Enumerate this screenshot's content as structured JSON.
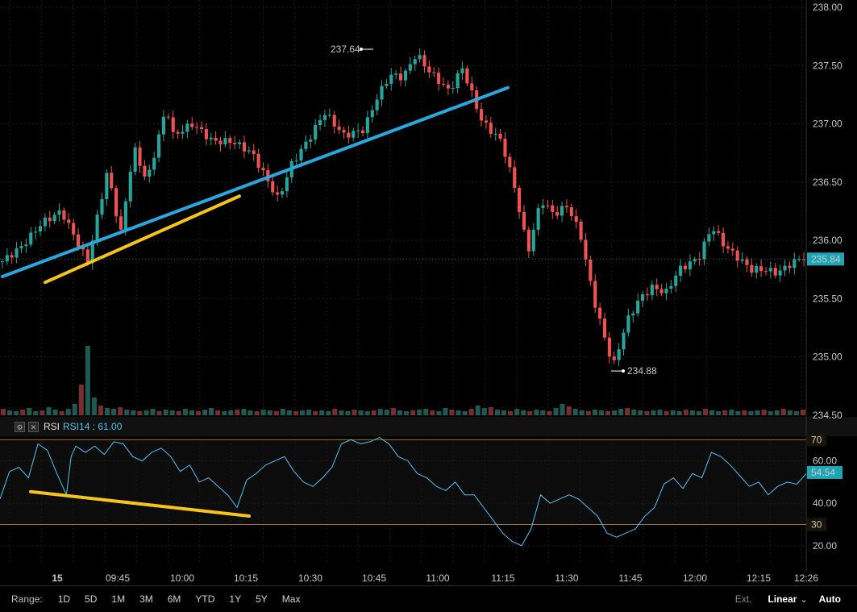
{
  "chart_data": [
    {
      "type": "candlestick",
      "ylim": [
        234.5,
        238.0
      ],
      "y_ticks": [
        "238.00",
        "237.50",
        "237.00",
        "236.50",
        "236.00",
        "235.50",
        "235.00",
        "234.50"
      ],
      "last_price_label": "235.84",
      "last_price": 235.84,
      "high_marker": {
        "label": "237.64",
        "value": 237.64
      },
      "low_marker": {
        "label": "234.88",
        "value": 234.88
      },
      "up_color": "#26a69a",
      "down_color": "#ef5350",
      "price_path": [
        [
          0,
          235.82
        ],
        [
          3,
          235.95
        ],
        [
          6,
          236.15
        ],
        [
          9,
          236.25
        ],
        [
          12,
          235.92
        ],
        [
          13,
          235.82
        ],
        [
          16,
          236.6
        ],
        [
          18,
          236.05
        ],
        [
          20,
          236.8
        ],
        [
          22,
          236.5
        ],
        [
          25,
          237.15
        ],
        [
          26,
          236.9
        ],
        [
          29,
          237.0
        ],
        [
          32,
          236.85
        ],
        [
          35,
          236.85
        ],
        [
          38,
          236.75
        ],
        [
          40,
          236.55
        ],
        [
          42,
          236.35
        ],
        [
          44,
          236.65
        ],
        [
          47,
          236.9
        ],
        [
          49,
          237.1
        ],
        [
          52,
          236.9
        ],
        [
          55,
          236.95
        ],
        [
          57,
          237.22
        ],
        [
          59,
          237.42
        ],
        [
          61,
          237.4
        ],
        [
          63,
          237.6
        ],
        [
          65,
          237.45
        ],
        [
          68,
          237.28
        ],
        [
          70,
          237.48
        ],
        [
          71,
          237.33
        ],
        [
          73,
          237.02
        ],
        [
          76,
          236.85
        ],
        [
          78,
          236.45
        ],
        [
          80,
          235.9
        ],
        [
          82,
          236.35
        ],
        [
          84,
          236.22
        ],
        [
          86,
          236.3
        ],
        [
          88,
          236.05
        ],
        [
          90,
          235.5
        ],
        [
          92,
          235.1
        ],
        [
          93,
          234.92
        ],
        [
          95,
          235.3
        ],
        [
          97,
          235.5
        ],
        [
          99,
          235.6
        ],
        [
          101,
          235.55
        ],
        [
          103,
          235.75
        ],
        [
          106,
          235.85
        ],
        [
          108,
          236.12
        ],
        [
          110,
          235.95
        ],
        [
          112,
          235.85
        ],
        [
          114,
          235.75
        ],
        [
          116,
          235.75
        ],
        [
          118,
          235.72
        ],
        [
          120,
          235.8
        ],
        [
          122,
          235.86
        ]
      ],
      "volumes": [
        8,
        6,
        5,
        7,
        9,
        5,
        6,
        10,
        7,
        5,
        8,
        14,
        38,
        86,
        22,
        12,
        9,
        8,
        10,
        7,
        6,
        5,
        6,
        8,
        5,
        7,
        6,
        5,
        8,
        6,
        5,
        7,
        9,
        6,
        5,
        6,
        7,
        8,
        6,
        5,
        7,
        6,
        5,
        8,
        6,
        5,
        6,
        7,
        5,
        6,
        5,
        8,
        6,
        5,
        7,
        6,
        5,
        6,
        8,
        7,
        9,
        6,
        5,
        6,
        7,
        8,
        6,
        5,
        9,
        7,
        6,
        5,
        8,
        12,
        9,
        10,
        7,
        6,
        5,
        8,
        6,
        5,
        7,
        6,
        5,
        9,
        14,
        11,
        8,
        6,
        5,
        7,
        6,
        5,
        6,
        8,
        9,
        7,
        6,
        5,
        6,
        7,
        5,
        6,
        5,
        7,
        6,
        5,
        8,
        6,
        5,
        6,
        7,
        5,
        6,
        5,
        6,
        7,
        5,
        6,
        8,
        6,
        5,
        7
      ]
    },
    {
      "type": "line",
      "title": "RSI",
      "indicator_label": "RSI14 : 61.00",
      "ylim": [
        15,
        72
      ],
      "y_ticks": [
        "60.00",
        "40.00",
        "20.00"
      ],
      "overbought_label": "70",
      "overbought": 70,
      "oversold_label": "30",
      "oversold": 30,
      "last_value_label": "54.54",
      "last_value": 54.54,
      "line_color": "#4fc3f7",
      "band_color": "#a3721a",
      "values": [
        [
          0,
          42
        ],
        [
          2,
          55
        ],
        [
          4,
          57
        ],
        [
          6,
          52
        ],
        [
          8,
          68
        ],
        [
          10,
          65
        ],
        [
          12,
          54
        ],
        [
          14,
          44
        ],
        [
          15,
          62
        ],
        [
          16,
          67
        ],
        [
          18,
          64
        ],
        [
          20,
          67
        ],
        [
          22,
          63
        ],
        [
          24,
          69
        ],
        [
          26,
          68
        ],
        [
          28,
          62
        ],
        [
          30,
          60
        ],
        [
          32,
          64
        ],
        [
          34,
          66
        ],
        [
          36,
          62
        ],
        [
          38,
          55
        ],
        [
          40,
          58
        ],
        [
          42,
          50
        ],
        [
          44,
          52
        ],
        [
          46,
          48
        ],
        [
          48,
          44
        ],
        [
          50,
          38
        ],
        [
          52,
          51
        ],
        [
          54,
          54
        ],
        [
          56,
          58
        ],
        [
          58,
          60
        ],
        [
          60,
          62
        ],
        [
          62,
          55
        ],
        [
          64,
          50
        ],
        [
          66,
          48
        ],
        [
          68,
          52
        ],
        [
          70,
          57
        ],
        [
          72,
          68
        ],
        [
          74,
          70
        ],
        [
          76,
          68
        ],
        [
          78,
          69
        ],
        [
          80,
          71
        ],
        [
          82,
          68
        ],
        [
          84,
          62
        ],
        [
          86,
          60
        ],
        [
          88,
          54
        ],
        [
          90,
          52
        ],
        [
          92,
          48
        ],
        [
          94,
          46
        ],
        [
          96,
          50
        ],
        [
          98,
          44
        ],
        [
          100,
          44
        ],
        [
          102,
          38
        ],
        [
          104,
          32
        ],
        [
          106,
          26
        ],
        [
          108,
          22
        ],
        [
          110,
          20
        ],
        [
          112,
          28
        ],
        [
          114,
          44
        ],
        [
          116,
          40
        ],
        [
          118,
          42
        ],
        [
          120,
          44
        ],
        [
          122,
          42
        ],
        [
          124,
          38
        ],
        [
          126,
          34
        ],
        [
          128,
          26
        ],
        [
          130,
          24
        ],
        [
          132,
          26
        ],
        [
          134,
          28
        ],
        [
          136,
          34
        ],
        [
          138,
          38
        ],
        [
          140,
          49
        ],
        [
          142,
          52
        ],
        [
          144,
          47
        ],
        [
          146,
          54
        ],
        [
          148,
          52
        ],
        [
          150,
          64
        ],
        [
          152,
          62
        ],
        [
          154,
          58
        ],
        [
          156,
          53
        ],
        [
          158,
          48
        ],
        [
          160,
          50
        ],
        [
          162,
          44
        ],
        [
          164,
          48
        ],
        [
          166,
          50
        ],
        [
          168,
          49
        ],
        [
          170,
          54
        ]
      ]
    }
  ],
  "annotations": {
    "price_trend_color": "#29a8e0",
    "support_line_color": "#f5c518",
    "rsi_trend_color": "#f5c518"
  },
  "x_axis": {
    "labels": [
      "15",
      "09:45",
      "10:00",
      "10:15",
      "10:30",
      "10:45",
      "11:00",
      "11:15",
      "11:30",
      "11:45",
      "12:00",
      "12:15",
      "12:26"
    ]
  },
  "rsi_header": {
    "title": "RSI",
    "indicator": "RSI14 : 61.00"
  },
  "range_bar": {
    "label": "Range:",
    "buttons": [
      "1D",
      "5D",
      "1M",
      "3M",
      "6M",
      "YTD",
      "1Y",
      "5Y",
      "Max"
    ],
    "ext_label": "Ext.",
    "scale_label": "Linear",
    "auto_label": "Auto"
  }
}
